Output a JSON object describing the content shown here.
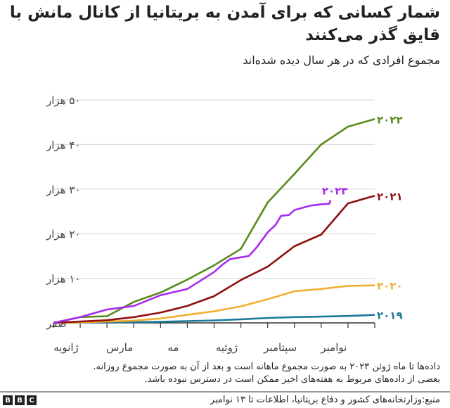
{
  "header": {
    "title": "شمار کسانی که برای آمدن به بریتانیا از کانال مانش با قایق گذر می‌کنند",
    "subtitle": "مجموع افرادی که در هر سال دیده شده‌اند"
  },
  "chart_data": {
    "type": "line",
    "title": "شمار کسانی که برای آمدن به بریتانیا از کانال مانش با قایق گذر می‌کنند",
    "ylabel": "مجموع افرادی که در هر سال دیده شده‌اند",
    "x_unit": "months since 1 January",
    "xlim": [
      0,
      12
    ],
    "ylim": [
      0,
      50000
    ],
    "grid": true,
    "y_ticks": [
      {
        "value": 0,
        "label": "صفر"
      },
      {
        "value": 10000,
        "label": "۱۰ هزار"
      },
      {
        "value": 20000,
        "label": "۲۰ هزار"
      },
      {
        "value": 30000,
        "label": "۳۰ هزار"
      },
      {
        "value": 40000,
        "label": "۴۰ هزار"
      },
      {
        "value": 50000,
        "label": "۵۰ هزار"
      }
    ],
    "x_ticks": [
      {
        "value": 0,
        "label": "ژانویه"
      },
      {
        "value": 2,
        "label": "مارس"
      },
      {
        "value": 4,
        "label": "مه"
      },
      {
        "value": 6,
        "label": "ژوئیه"
      },
      {
        "value": 8,
        "label": "سپتامبر"
      },
      {
        "value": 10,
        "label": "نوامبر"
      }
    ],
    "series": [
      {
        "name": "۲۰۱۹",
        "color": "#1b7a9a",
        "x": [
          0,
          1,
          2,
          3,
          4,
          5,
          6,
          7,
          8,
          9,
          10,
          11,
          12
        ],
        "y": [
          0,
          50,
          100,
          150,
          250,
          400,
          550,
          800,
          1100,
          1300,
          1400,
          1550,
          1800
        ]
      },
      {
        "name": "۲۰۲۰",
        "color": "#f2ae30",
        "x": [
          0,
          1,
          2,
          3,
          4,
          5,
          6,
          7,
          8,
          9,
          10,
          11,
          12
        ],
        "y": [
          0,
          100,
          300,
          500,
          1000,
          1800,
          2600,
          3700,
          5300,
          7100,
          7600,
          8300,
          8400
        ]
      },
      {
        "name": "۲۰۲۱",
        "color": "#8e1010",
        "x": [
          0,
          1,
          2,
          3,
          4,
          5,
          6,
          7,
          8,
          9,
          10,
          11,
          12
        ],
        "y": [
          0,
          300,
          600,
          1300,
          2300,
          3800,
          6000,
          9600,
          12600,
          17200,
          19800,
          26800,
          28500
        ]
      },
      {
        "name": "۲۰۲۲",
        "color": "#5a8a1c",
        "x": [
          0,
          1,
          2,
          3,
          4,
          5,
          6,
          7,
          8,
          9,
          10,
          11,
          12
        ],
        "y": [
          0,
          1300,
          1500,
          4700,
          6800,
          9700,
          12900,
          16600,
          27000,
          33400,
          40000,
          44000,
          45700
        ]
      },
      {
        "name": "۲۰۲۳",
        "color": "#a52cf0",
        "x": [
          0,
          1,
          2,
          3,
          4,
          5,
          5.5,
          6,
          6.3,
          6.6,
          7,
          7.3,
          7.6,
          8,
          8.3,
          8.5,
          8.8,
          9,
          9.3,
          9.6,
          10,
          10.3,
          10.35
        ],
        "y": [
          0,
          1300,
          3000,
          3800,
          6200,
          7600,
          9500,
          11400,
          13000,
          14300,
          14700,
          15000,
          17000,
          20300,
          22000,
          24000,
          24200,
          25300,
          25800,
          26300,
          26600,
          26700,
          27500
        ]
      }
    ]
  },
  "footer": {
    "note_line1": "داده‌ها تا ماه ژوئن ۲۰۲۳ به صورت مجموع ماهانه است و بعد از آن به صورت مجموع روزانه.",
    "note_line2": "بعضی از داده‌های مربوط به هفته‌های اخیر ممکن است در دسترس نبوده باشد.",
    "source": "منبع:وزارتخانه‌های کشور و دفاع بریتانیا، اطلاعات تا ۱۳ نوامبر",
    "logo": [
      "B",
      "B",
      "C"
    ]
  }
}
